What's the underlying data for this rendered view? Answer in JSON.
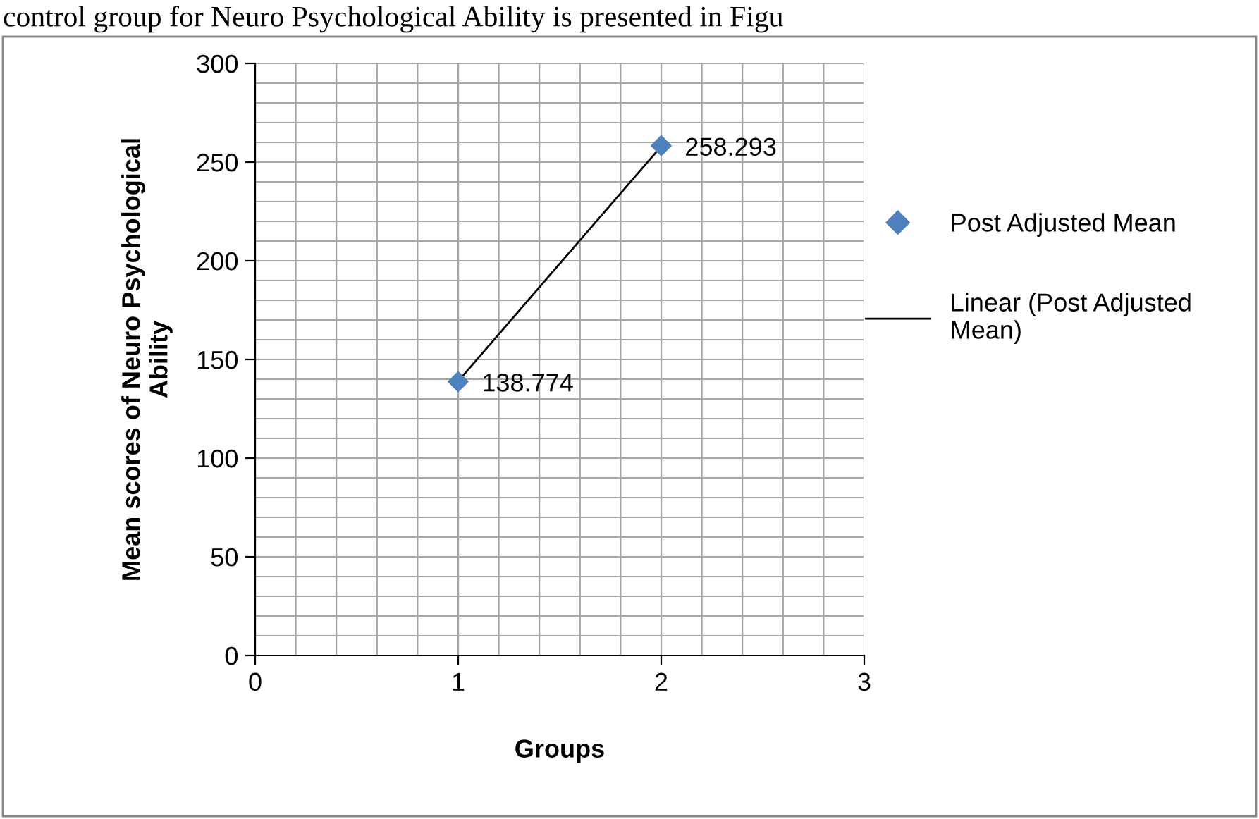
{
  "chart_data": {
    "type": "scatter",
    "xlabel": "Groups",
    "ylabel": "Mean scores of Neuro Psychological\nAbility",
    "annotations": [
      "control group for Neuro Psychological Ability is presented in Figu"
    ],
    "x": [
      1,
      2
    ],
    "series": [
      {
        "name": "Post Adjusted Mean",
        "color": "#4f81bd",
        "values": [
          138.774,
          258.293
        ],
        "value_labels": [
          "138.774",
          "258.293"
        ],
        "marker": "diamond"
      },
      {
        "name": "Linear (Post Adjusted Mean)",
        "type": "line",
        "color": "#000000",
        "x": [
          1,
          2
        ],
        "values": [
          139,
          258
        ],
        "marker": "none",
        "line_style": "solid"
      }
    ],
    "xlim": [
      0,
      3
    ],
    "xticks": [
      0,
      1,
      2,
      3
    ],
    "ylim": [
      0,
      300
    ],
    "yticks": [
      0,
      50,
      100,
      150,
      200,
      250,
      300
    ],
    "grid": true,
    "legend": "right"
  }
}
